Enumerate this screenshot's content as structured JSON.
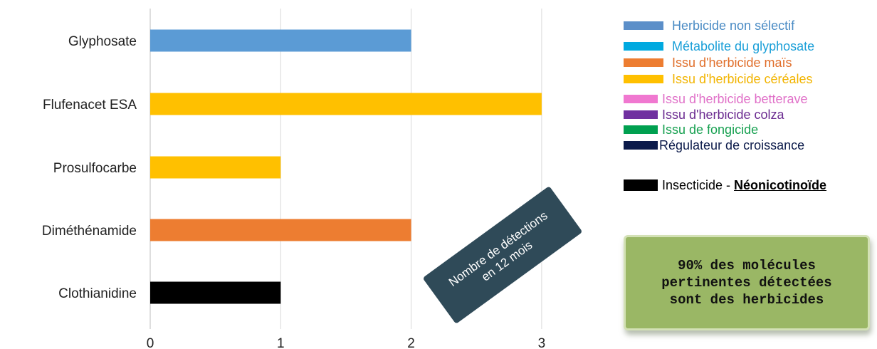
{
  "chart_data": {
    "type": "bar",
    "orientation": "horizontal",
    "categories": [
      "Glyphosate",
      "Flufenacet ESA",
      "Prosulfocarbe",
      "Diméthénamide",
      "Clothianidine"
    ],
    "values": [
      2,
      3,
      1,
      2,
      1
    ],
    "bar_colors": [
      "#5b9bd5",
      "#ffc000",
      "#ffc000",
      "#ed7d31",
      "#000000"
    ],
    "bar_categories": [
      "Herbicide non sélectif",
      "Issu d'herbicide céréales",
      "Issu d'herbicide céréales",
      "Issu d'herbicide maïs",
      "Insecticide - Néonicotinoïde"
    ],
    "x_ticks": [
      "0",
      "1",
      "2",
      "3"
    ],
    "xlim": [
      0,
      3
    ],
    "grid": "vertical",
    "title": "",
    "xlabel": "Nombre de détections en 12 mois",
    "xlabel_lines": [
      "Nombre de détections",
      "en 12 mois"
    ],
    "ylabel": "",
    "legend_position": "top-right",
    "legend": [
      {
        "label": "Herbicide non sélectif",
        "color": "#5b8fc9",
        "text_color": "#4a8bc4"
      },
      {
        "label": "Métabolite  du glyphosate",
        "color": "#00a9e0",
        "text_color": "#1a9fd8"
      },
      {
        "label": "Issu d'herbicide maïs",
        "color": "#ed7d31",
        "text_color": "#e06e2a"
      },
      {
        "label": "Issu d'herbicide céréales",
        "color": "#ffc000",
        "text_color": "#f2b400"
      },
      {
        "label": "Issu d'herbicide betterave",
        "color": "#f078d0",
        "text_color": "#e070c8"
      },
      {
        "label": "Issu d'herbicide colza",
        "color": "#7030a0",
        "text_color": "#6a2a90"
      },
      {
        "label": "Issu de fongicide",
        "color": "#00a050",
        "text_color": "#16a050"
      },
      {
        "label": "Régulateur  de croissance",
        "color": "#0b1a4a",
        "text_color": "#0b1a4a"
      },
      {
        "label_main": "Insecticide - ",
        "label_em": "Néonicotinoïde",
        "color": "#000000",
        "text_color": "#000000"
      }
    ]
  },
  "note": {
    "line1": "90% des molécules",
    "line2": "pertinentes détectées",
    "line3": "sont des herbicides"
  }
}
